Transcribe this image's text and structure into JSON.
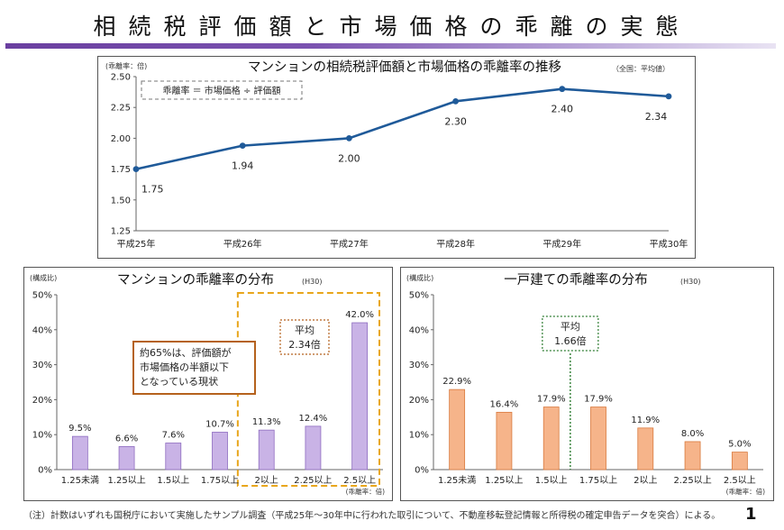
{
  "page": {
    "title": "相続税評価額と市場価格の乖離の実態",
    "footnote": "（注）計数はいずれも国税庁において実施したサンプル調査（平成25年～30年中に行われた取引について、不動産移転登記情報と所得税の確定申告データを突合）による。",
    "page_number": "1"
  },
  "chart_data": [
    {
      "type": "line",
      "title": "マンションの相続税評価額と市場価格の乖離率の推移",
      "subtitle": "（全国：平均値）",
      "ylabel": "(乖離率：倍)",
      "formula_box": "乖離率 ＝ 市場価格 ÷ 評価額",
      "categories": [
        "平成25年",
        "平成26年",
        "平成27年",
        "平成28年",
        "平成29年",
        "平成30年"
      ],
      "values": [
        1.75,
        1.94,
        2.0,
        2.3,
        2.4,
        2.34
      ],
      "value_labels": [
        "1.75",
        "1.94",
        "2.00",
        "2.30",
        "2.40",
        "2.34"
      ],
      "yticks": [
        "2.50",
        "2.25",
        "2.00",
        "1.75",
        "1.50",
        "1.25"
      ],
      "ylim": [
        1.25,
        2.5
      ],
      "color": "#1f5a99"
    },
    {
      "type": "bar",
      "title": "マンションの乖離率の分布",
      "subtitle": "(H30)",
      "ylabel": "(構成比)",
      "xunit": "(乖離率：倍)",
      "categories": [
        "1.25未満",
        "1.25以上",
        "1.5以上",
        "1.75以上",
        "2以上",
        "2.25以上",
        "2.5以上"
      ],
      "values": [
        9.5,
        6.6,
        7.6,
        10.7,
        11.3,
        12.4,
        42.0
      ],
      "value_labels": [
        "9.5%",
        "6.6%",
        "7.6%",
        "10.7%",
        "11.3%",
        "12.4%",
        "42.0%"
      ],
      "yticks": [
        "50%",
        "40%",
        "30%",
        "20%",
        "10%",
        "0%"
      ],
      "ylim": [
        0,
        50
      ],
      "bar_color": "#c9b3e6",
      "bar_border": "#8e6cc0",
      "avg_label": [
        "平均",
        "2.34倍"
      ],
      "callout": [
        "約65%は、評価額が",
        "市場価格の半額以下",
        "となっている現状"
      ]
    },
    {
      "type": "bar",
      "title": "一戸建ての乖離率の分布",
      "subtitle": "(H30)",
      "ylabel": "(構成比)",
      "xunit": "(乖離率：倍)",
      "categories": [
        "1.25未満",
        "1.25以上",
        "1.5以上",
        "1.75以上",
        "2以上",
        "2.25以上",
        "2.5以上"
      ],
      "values": [
        22.9,
        16.4,
        17.9,
        17.9,
        11.9,
        8.0,
        5.0
      ],
      "value_labels": [
        "22.9%",
        "16.4%",
        "17.9%",
        "17.9%",
        "11.9%",
        "8.0%",
        "5.0%"
      ],
      "yticks": [
        "50%",
        "40%",
        "30%",
        "20%",
        "10%",
        "0%"
      ],
      "ylim": [
        0,
        50
      ],
      "bar_color": "#f6b48a",
      "bar_border": "#d97a3e",
      "avg_label": [
        "平均",
        "1.66倍"
      ]
    }
  ]
}
